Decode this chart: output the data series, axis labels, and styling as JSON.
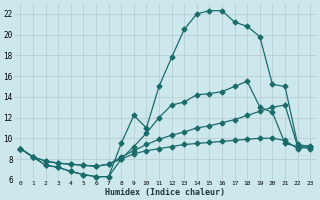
{
  "xlabel": "Humidex (Indice chaleur)",
  "background_color": "#cde8ec",
  "grid_color": "#b8cfd4",
  "line_color": "#1a6b6b",
  "xlim": [
    -0.5,
    23.5
  ],
  "ylim": [
    6,
    23
  ],
  "xticks": [
    0,
    1,
    2,
    3,
    4,
    5,
    6,
    7,
    8,
    9,
    10,
    11,
    12,
    13,
    14,
    15,
    16,
    17,
    18,
    19,
    20,
    21,
    22,
    23
  ],
  "yticks": [
    6,
    8,
    10,
    12,
    14,
    16,
    18,
    20,
    22
  ],
  "series": [
    [
      9.0,
      8.2,
      7.4,
      7.2,
      6.8,
      6.5,
      6.3,
      6.3,
      9.5,
      12.2,
      11.0,
      15.0,
      17.8,
      20.5,
      22.0,
      22.3,
      22.3,
      21.2,
      20.8,
      19.8,
      15.2,
      15.0,
      9.4,
      9.2
    ],
    [
      9.0,
      8.2,
      7.4,
      7.2,
      6.8,
      6.5,
      6.3,
      6.3,
      8.0,
      9.2,
      10.5,
      12.0,
      13.2,
      13.5,
      14.2,
      14.3,
      14.5,
      15.0,
      15.5,
      13.0,
      12.5,
      9.5,
      9.2,
      9.0
    ],
    [
      9.0,
      8.2,
      7.8,
      7.6,
      7.5,
      7.4,
      7.3,
      7.5,
      8.2,
      8.8,
      9.4,
      9.9,
      10.3,
      10.6,
      11.0,
      11.2,
      11.5,
      11.8,
      12.2,
      12.6,
      13.0,
      13.2,
      9.2,
      9.3
    ],
    [
      9.0,
      8.2,
      7.8,
      7.6,
      7.5,
      7.4,
      7.3,
      7.5,
      8.0,
      8.5,
      8.8,
      9.0,
      9.2,
      9.4,
      9.5,
      9.6,
      9.7,
      9.8,
      9.9,
      10.0,
      10.0,
      9.8,
      9.0,
      9.2
    ]
  ],
  "marker_size": 2.5,
  "linewidth": 0.9
}
